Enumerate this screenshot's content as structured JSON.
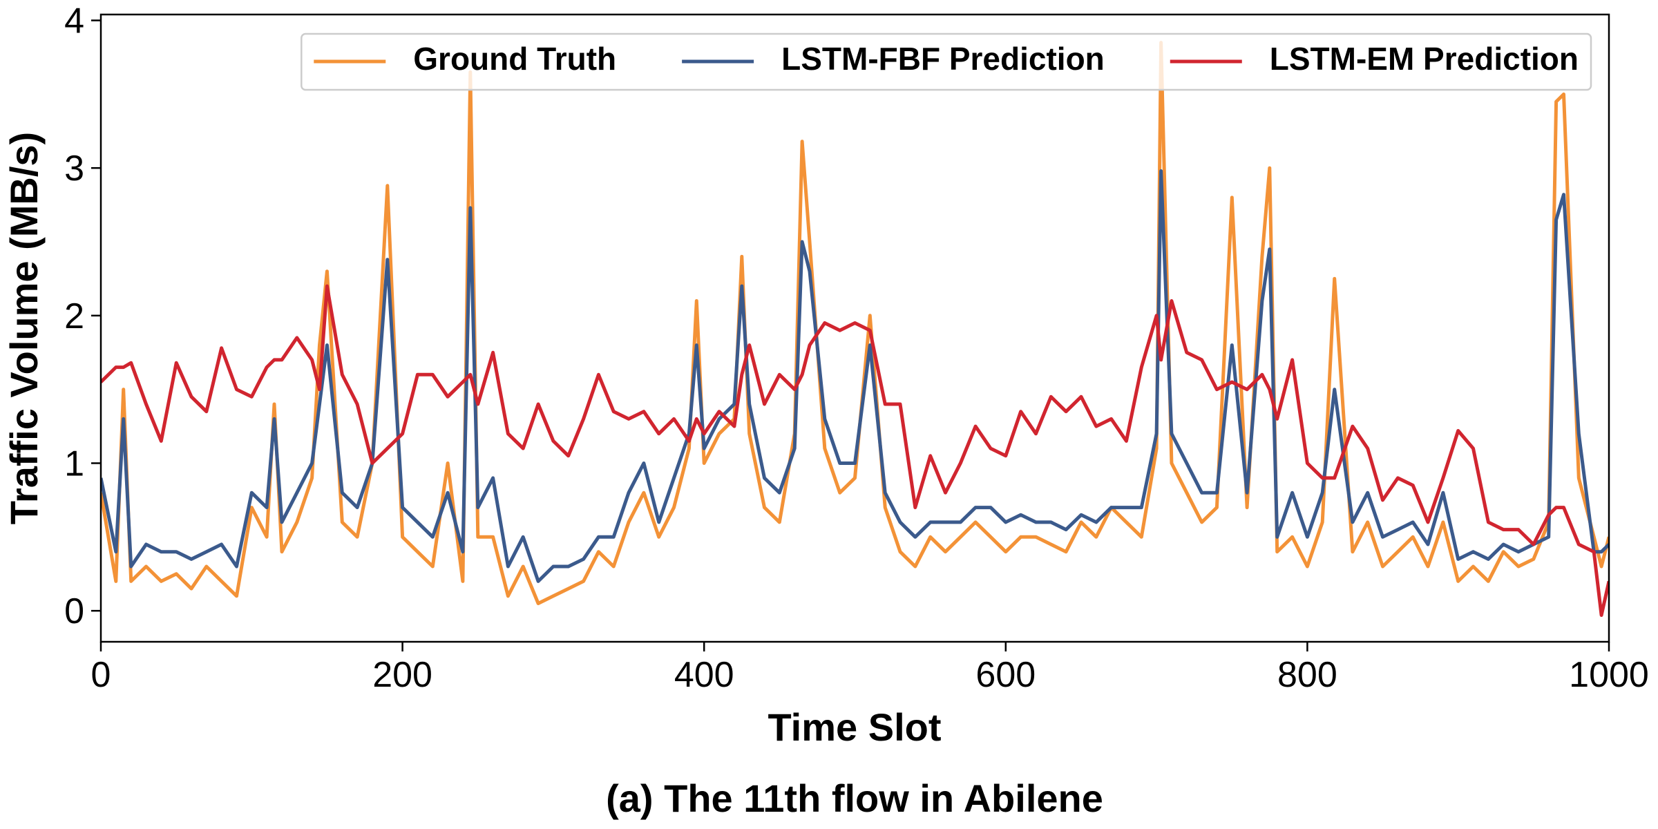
{
  "chart_data": {
    "type": "line",
    "caption": "(a) The 11th flow in Abilene",
    "x_label": "Time Slot",
    "y_label": "Traffic Volume (MB/s)",
    "xlim": [
      0,
      1000
    ],
    "xticks": [
      0,
      200,
      400,
      600,
      800,
      1000
    ],
    "ylim": [
      -0.21,
      4.04
    ],
    "yticks": [
      0,
      1,
      2,
      3,
      4
    ],
    "legend": "upper right",
    "x": [
      0,
      10,
      15,
      20,
      30,
      40,
      50,
      60,
      70,
      80,
      90,
      100,
      110,
      115,
      120,
      130,
      140,
      145,
      150,
      160,
      170,
      180,
      190,
      200,
      210,
      220,
      230,
      240,
      245,
      250,
      260,
      270,
      280,
      290,
      300,
      310,
      320,
      330,
      340,
      350,
      360,
      370,
      380,
      390,
      395,
      400,
      410,
      420,
      425,
      430,
      440,
      450,
      460,
      465,
      470,
      480,
      490,
      500,
      510,
      520,
      530,
      540,
      550,
      560,
      570,
      580,
      590,
      600,
      610,
      620,
      630,
      640,
      650,
      660,
      670,
      680,
      690,
      700,
      703,
      710,
      720,
      730,
      740,
      750,
      760,
      770,
      775,
      780,
      790,
      800,
      810,
      818,
      830,
      840,
      850,
      860,
      870,
      880,
      890,
      900,
      910,
      920,
      930,
      940,
      950,
      960,
      965,
      970,
      980,
      990,
      995,
      1000
    ],
    "series": [
      {
        "name": "Ground Truth",
        "color": "#f39237",
        "values": [
          0.8,
          0.2,
          1.5,
          0.2,
          0.3,
          0.2,
          0.25,
          0.15,
          0.3,
          0.2,
          0.1,
          0.7,
          0.5,
          1.4,
          0.4,
          0.6,
          0.9,
          1.8,
          2.3,
          0.6,
          0.5,
          1.0,
          2.88,
          0.5,
          0.4,
          0.3,
          1.0,
          0.2,
          3.65,
          0.5,
          0.5,
          0.1,
          0.3,
          0.05,
          0.1,
          0.15,
          0.2,
          0.4,
          0.3,
          0.6,
          0.8,
          0.5,
          0.7,
          1.1,
          2.1,
          1.0,
          1.2,
          1.3,
          2.4,
          1.2,
          0.7,
          0.6,
          1.2,
          3.18,
          2.5,
          1.1,
          0.8,
          0.9,
          2.0,
          0.7,
          0.4,
          0.3,
          0.5,
          0.4,
          0.5,
          0.6,
          0.5,
          0.4,
          0.5,
          0.5,
          0.45,
          0.4,
          0.6,
          0.5,
          0.7,
          0.6,
          0.5,
          1.1,
          3.85,
          1.0,
          0.8,
          0.6,
          0.7,
          2.8,
          0.7,
          2.4,
          3.0,
          0.4,
          0.5,
          0.3,
          0.6,
          2.25,
          0.4,
          0.6,
          0.3,
          0.4,
          0.5,
          0.3,
          0.6,
          0.2,
          0.3,
          0.2,
          0.4,
          0.3,
          0.35,
          0.6,
          3.45,
          3.5,
          0.9,
          0.5,
          0.3,
          0.5
        ]
      },
      {
        "name": "LSTM-FBF Prediction",
        "color": "#3b5a8c",
        "values": [
          0.9,
          0.4,
          1.3,
          0.3,
          0.45,
          0.4,
          0.4,
          0.35,
          0.4,
          0.45,
          0.3,
          0.8,
          0.7,
          1.3,
          0.6,
          0.8,
          1.0,
          1.4,
          1.8,
          0.8,
          0.7,
          1.0,
          2.38,
          0.7,
          0.6,
          0.5,
          0.8,
          0.4,
          2.73,
          0.7,
          0.9,
          0.3,
          0.5,
          0.2,
          0.3,
          0.3,
          0.35,
          0.5,
          0.5,
          0.8,
          1.0,
          0.6,
          0.9,
          1.2,
          1.8,
          1.1,
          1.3,
          1.4,
          2.2,
          1.4,
          0.9,
          0.8,
          1.1,
          2.5,
          2.3,
          1.3,
          1.0,
          1.0,
          1.8,
          0.8,
          0.6,
          0.5,
          0.6,
          0.6,
          0.6,
          0.7,
          0.7,
          0.6,
          0.65,
          0.6,
          0.6,
          0.55,
          0.65,
          0.6,
          0.7,
          0.7,
          0.7,
          1.2,
          2.98,
          1.2,
          1.0,
          0.8,
          0.8,
          1.8,
          0.8,
          2.1,
          2.45,
          0.5,
          0.8,
          0.5,
          0.8,
          1.5,
          0.6,
          0.8,
          0.5,
          0.55,
          0.6,
          0.45,
          0.8,
          0.35,
          0.4,
          0.35,
          0.45,
          0.4,
          0.45,
          0.5,
          2.65,
          2.82,
          1.2,
          0.4,
          0.4,
          0.45
        ]
      },
      {
        "name": "LSTM-EM Prediction",
        "color": "#d1252f",
        "values": [
          1.55,
          1.65,
          1.65,
          1.68,
          1.4,
          1.15,
          1.68,
          1.45,
          1.35,
          1.78,
          1.5,
          1.45,
          1.65,
          1.7,
          1.7,
          1.85,
          1.7,
          1.5,
          2.2,
          1.6,
          1.4,
          1.0,
          1.1,
          1.2,
          1.6,
          1.6,
          1.45,
          1.55,
          1.6,
          1.4,
          1.75,
          1.2,
          1.1,
          1.4,
          1.15,
          1.05,
          1.3,
          1.6,
          1.35,
          1.3,
          1.35,
          1.2,
          1.3,
          1.15,
          1.3,
          1.2,
          1.35,
          1.25,
          1.6,
          1.8,
          1.4,
          1.6,
          1.5,
          1.6,
          1.8,
          1.95,
          1.9,
          1.95,
          1.9,
          1.4,
          1.4,
          0.7,
          1.05,
          0.8,
          1.0,
          1.25,
          1.1,
          1.05,
          1.35,
          1.2,
          1.45,
          1.35,
          1.45,
          1.25,
          1.3,
          1.15,
          1.65,
          2.0,
          1.7,
          2.1,
          1.75,
          1.7,
          1.5,
          1.55,
          1.5,
          1.6,
          1.5,
          1.3,
          1.7,
          1.0,
          0.9,
          0.9,
          1.25,
          1.1,
          0.75,
          0.9,
          0.85,
          0.6,
          0.9,
          1.22,
          1.1,
          0.6,
          0.55,
          0.55,
          0.45,
          0.65,
          0.7,
          0.7,
          0.45,
          0.4,
          -0.03,
          0.2
        ]
      }
    ]
  }
}
